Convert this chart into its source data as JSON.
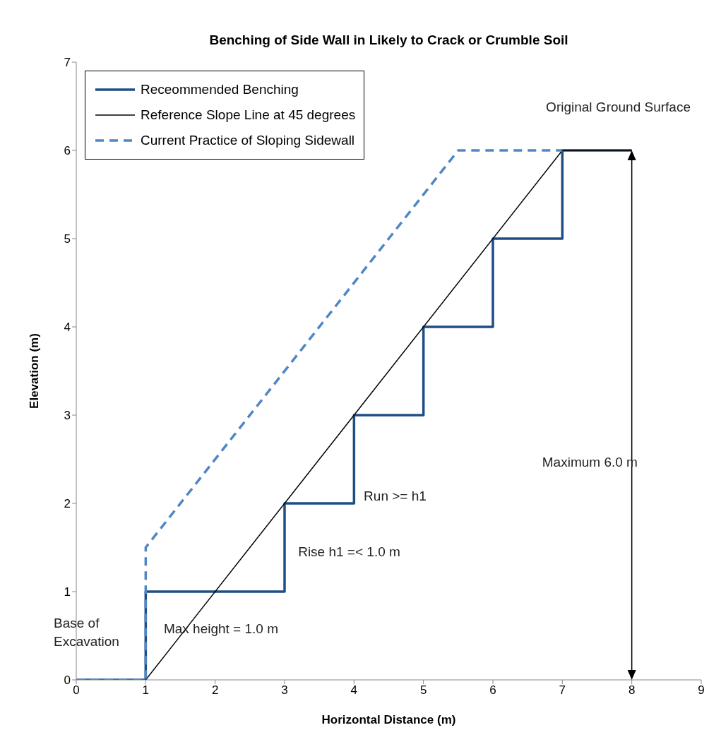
{
  "chart_data": {
    "type": "line",
    "title": "Benching of Side Wall in Likely to Crack or Crumble Soil",
    "xlabel": "Horizontal Distance (m)",
    "ylabel": "Elevation (m)",
    "xlim": [
      0,
      9
    ],
    "xticks": [
      0,
      1,
      2,
      3,
      4,
      5,
      6,
      7,
      8,
      9
    ],
    "ylim": [
      0,
      7
    ],
    "yticks": [
      0,
      1,
      2,
      3,
      4,
      5,
      6,
      7
    ],
    "legend": "top left",
    "marker": "none",
    "series": [
      {
        "name": "Receommended Benching",
        "color": "#1f4e85",
        "line_style": "solid",
        "x": [
          0,
          1,
          1,
          3,
          3,
          4,
          4,
          5,
          5,
          6,
          6,
          7,
          7,
          8
        ],
        "values": [
          0,
          0,
          1,
          1,
          2,
          2,
          3,
          3,
          4,
          4,
          5,
          5,
          6,
          6
        ]
      },
      {
        "name": "Reference Slope Line at 45 degrees",
        "color": "#000000",
        "line_style": "solid",
        "x": [
          1,
          7,
          8
        ],
        "values": [
          0,
          6,
          6
        ]
      },
      {
        "name": "Current Practice of Sloping Sidewall",
        "color": "#4f86c6",
        "line_style": "dashed",
        "x": [
          0,
          1,
          1,
          5.5,
          7
        ],
        "values": [
          0,
          0,
          1.5,
          6,
          6
        ]
      }
    ],
    "annotations": [
      "Original Ground Surface",
      "Maximum 6.0 m",
      "Run >= h1",
      "Rise h1 =< 1.0 m",
      "Max height = 1.0 m",
      "Base of Excavation"
    ]
  }
}
